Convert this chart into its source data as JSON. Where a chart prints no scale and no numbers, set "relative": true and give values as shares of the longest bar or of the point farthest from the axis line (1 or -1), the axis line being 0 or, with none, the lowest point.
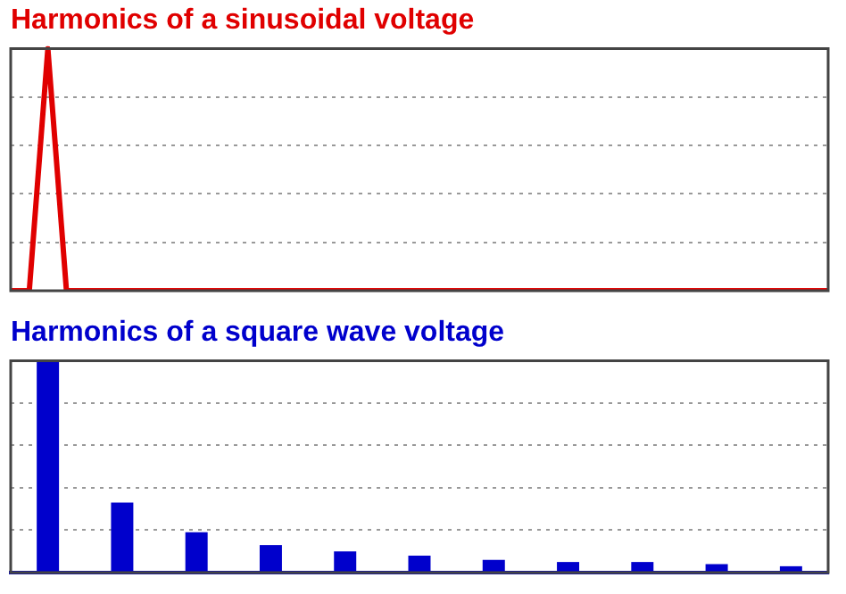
{
  "chart_data": [
    {
      "type": "line",
      "title": "Harmonics of a sinusoidal voltage",
      "relative": true,
      "grid": "y",
      "marker": "none",
      "categories": [
        null,
        null,
        null,
        null,
        null,
        null,
        null,
        null,
        null,
        null,
        null,
        null,
        null,
        null,
        null,
        null,
        null,
        null,
        null,
        null,
        null,
        null,
        null,
        null,
        null,
        null,
        null,
        null,
        null,
        null,
        null,
        null,
        null,
        null,
        null,
        null,
        null,
        null,
        null,
        null,
        null,
        null,
        null,
        null,
        null
      ],
      "series": [
        {
          "color": "#e00000",
          "values": [
            0,
            0,
            1,
            0,
            0,
            0,
            0,
            0,
            0,
            0,
            0,
            0,
            0,
            0,
            0,
            0,
            0,
            0,
            0,
            0,
            0,
            0,
            0,
            0,
            0,
            0,
            0,
            0,
            0,
            0,
            0,
            0,
            0,
            0,
            0,
            0,
            0,
            0,
            0,
            0,
            0,
            0,
            0,
            0,
            0
          ]
        }
      ]
    },
    {
      "type": "bar",
      "title": "Harmonics of a square wave voltage",
      "relative": true,
      "grid": "y",
      "categories": [
        null,
        null,
        null,
        null,
        null,
        null,
        null,
        null,
        null,
        null,
        null
      ],
      "series": [
        {
          "color": "#0000cc",
          "values": [
            1,
            0.33,
            0.19,
            0.13,
            0.1,
            0.08,
            0.06,
            0.05,
            0.05,
            0.04,
            0.03
          ]
        }
      ]
    }
  ]
}
